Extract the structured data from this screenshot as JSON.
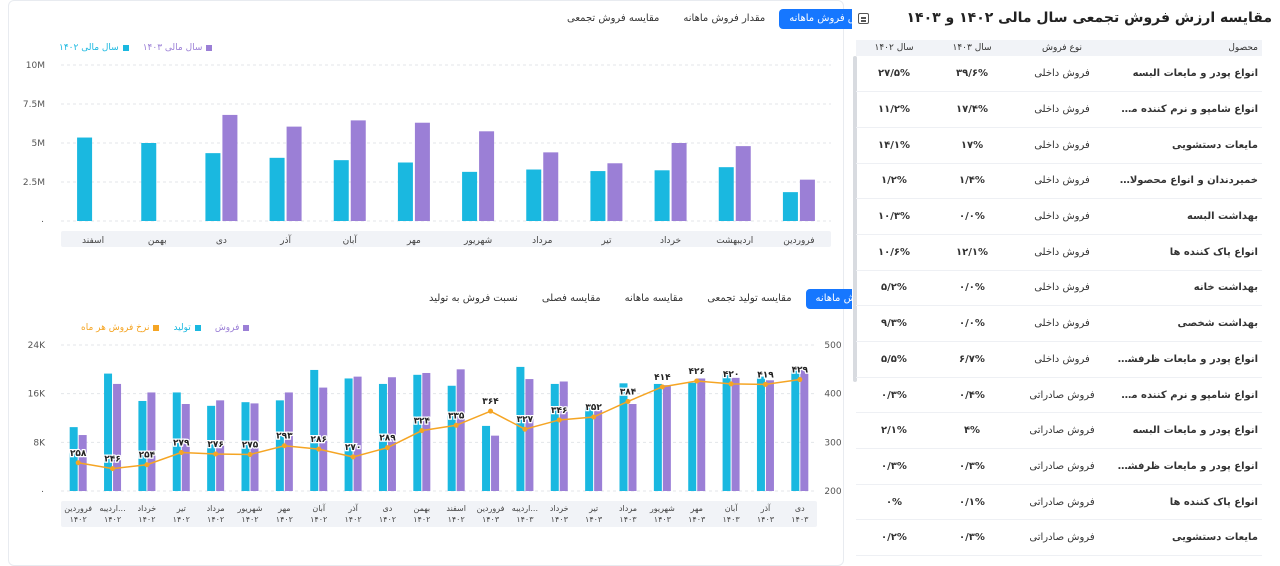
{
  "top": {
    "tabs": [
      "ارزش فروش ماهانه",
      "مقدار فروش ماهانه",
      "مقایسه فروش تجمعی"
    ],
    "active_tab": 0
  },
  "bottom": {
    "tabs": [
      "فروش ماهانه",
      "مقایسه تولید تجمعی",
      "مقایسه ماهانه",
      "مقایسه فصلی",
      "نسبت فروش به تولید"
    ],
    "active_tab": 0
  },
  "right": {
    "title": "مقایسه ارزش فروش تجمعی سال مالی ۱۴۰۲ و ۱۴۰۳",
    "headers": [
      "محصول",
      "نوع فروش",
      "سال ۱۴۰۳",
      "سال ۱۴۰۲"
    ],
    "rows": [
      [
        "انواع پودر و مایعات البسه",
        "فروش داخلی",
        "۳۹/۶%",
        "۲۷/۵%"
      ],
      [
        "انواع شامپو و نرم کننده موی سر",
        "فروش داخلی",
        "۱۷/۴%",
        "۱۱/۲%"
      ],
      [
        "مایعات دستشویی",
        "فروش داخلی",
        "۱۷%",
        "۱۴/۱%"
      ],
      [
        "خمیردندان و انواع محصولات بهدا...",
        "فروش داخلی",
        "۱/۴%",
        "۱/۲%"
      ],
      [
        "بهداشت البسه",
        "فروش داخلی",
        "۰/۰%",
        "۱۰/۳%"
      ],
      [
        "انواع پاک کننده ها",
        "فروش داخلی",
        "۱۲/۱%",
        "۱۰/۶%"
      ],
      [
        "بهداشت خانه",
        "فروش داخلی",
        "۰/۰%",
        "۵/۲%"
      ],
      [
        "بهداشت شخصی",
        "فروش داخلی",
        "۰/۰%",
        "۹/۳%"
      ],
      [
        "انواع پودر و مایعات ظرفشویی",
        "فروش داخلی",
        "۶/۷%",
        "۵/۵%"
      ],
      [
        "انواع شامپو و نرم کننده موی سر",
        "فروش صادراتی",
        "۰/۴%",
        "۰/۳%"
      ],
      [
        "انواع پودر و مایعات البسه",
        "فروش صادراتی",
        "۴%",
        "۲/۱%"
      ],
      [
        "انواع پودر و مایعات ظرفشویی",
        "فروش صادراتی",
        "۰/۳%",
        "۰/۳%"
      ],
      [
        "انواع پاک کننده ها",
        "فروش صادراتی",
        "۰/۱%",
        "۰%"
      ],
      [
        "مایعات دستشویی",
        "فروش صادراتی",
        "۰/۳%",
        "۰/۲%"
      ]
    ]
  },
  "chart_data": [
    {
      "type": "bar",
      "categories": [
        "فروردین",
        "اردیبهشت",
        "خرداد",
        "تیر",
        "مرداد",
        "شهریور",
        "مهر",
        "آبان",
        "آذر",
        "دی",
        "بهمن",
        "اسفند"
      ],
      "series": [
        {
          "name": "سال مالی ۱۴۰۲",
          "color": "#1ab8e0",
          "values": [
            1.85,
            3.45,
            3.25,
            3.2,
            3.3,
            3.15,
            3.75,
            3.9,
            4.05,
            4.35,
            5.0,
            5.35
          ]
        },
        {
          "name": "سال مالی ۱۴۰۳",
          "color": "#9b7fd6",
          "values": [
            2.65,
            4.8,
            5.0,
            3.7,
            4.4,
            5.75,
            6.3,
            6.45,
            6.05,
            6.8,
            null,
            null
          ]
        }
      ],
      "yticks": [
        "۰",
        "2.5M",
        "5M",
        "7.5M",
        "10M"
      ],
      "ylim": [
        0,
        10
      ],
      "unit": "M"
    },
    {
      "type": "bar",
      "categories": [
        "فروردین ۱۴۰۲",
        "اردیبه... ۱۴۰۲",
        "خرداد ۱۴۰۲",
        "تیر ۱۴۰۲",
        "مرداد ۱۴۰۲",
        "شهریور ۱۴۰۲",
        "مهر ۱۴۰۲",
        "آبان ۱۴۰۲",
        "آذر ۱۴۰۲",
        "دی ۱۴۰۲",
        "بهمن ۱۴۰۲",
        "اسفند ۱۴۰۲",
        "فروردین ۱۴۰۳",
        "اردیبه... ۱۴۰۳",
        "خرداد ۱۴۰۳",
        "تیر ۱۴۰۳",
        "مرداد ۱۴۰۳",
        "شهریور ۱۴۰۳",
        "مهر ۱۴۰۳",
        "آبان ۱۴۰۳",
        "آذر ۱۴۰۳",
        "دی ۱۴۰۳"
      ],
      "series": [
        {
          "name": "تولید",
          "color": "#1ab8e0",
          "values": [
            10.5,
            19.3,
            14.8,
            16.2,
            14.0,
            14.6,
            14.9,
            19.9,
            18.5,
            17.6,
            19.1,
            17.3,
            10.7,
            20.4,
            17.6,
            13.8,
            17.7,
            17.6,
            17.8,
            19.5,
            18.8,
            19.8
          ]
        },
        {
          "name": "فروش",
          "color": "#9b7fd6",
          "values": [
            9.2,
            17.6,
            16.2,
            14.3,
            14.9,
            14.4,
            16.2,
            17.0,
            18.8,
            18.7,
            19.4,
            20.0,
            9.1,
            18.4,
            18.0,
            13.3,
            14.3,
            17.4,
            18.5,
            18.6,
            18.2,
            19.9
          ]
        },
        {
          "name": "نرخ فروش هر ماه",
          "color": "#f5a524",
          "values": [
            258,
            246,
            254,
            279,
            276,
            275,
            293,
            286,
            270,
            289,
            324,
            335,
            364,
            327,
            346,
            352,
            384,
            414,
            426,
            420,
            419,
            429
          ]
        }
      ],
      "line_labels": [
        "۲۵۸",
        "۲۴۶",
        "۲۵۴",
        "۲۷۹",
        "۲۷۶",
        "۲۷۵",
        "۲۹۳",
        "۲۸۶",
        "۲۷۰",
        "۲۸۹",
        "۳۲۴",
        "۳۳۵",
        "۳۶۴",
        "۳۲۷",
        "۳۴۶",
        "۳۵۲",
        "۳۸۴",
        "۴۱۴",
        "۴۲۶",
        "۴۲۰",
        "۴۱۹",
        "۴۲۹"
      ],
      "yticks_left": [
        "۰",
        "8K",
        "16K",
        "24K"
      ],
      "ylim_left": [
        0,
        24
      ],
      "yticks_right": [
        "200",
        "300",
        "400",
        "500"
      ],
      "ylim_right": [
        200,
        500
      ],
      "legend_order": [
        "فروش",
        "تولید",
        "نرخ فروش هر ماه"
      ]
    }
  ]
}
